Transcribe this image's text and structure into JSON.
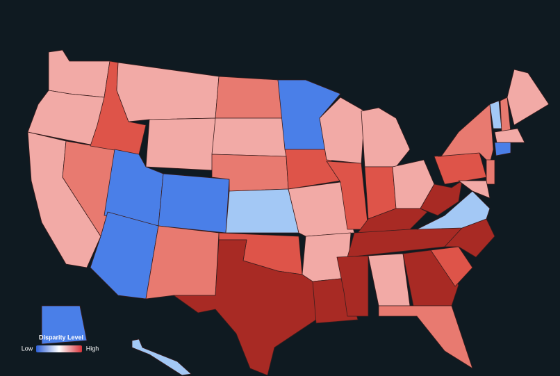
{
  "map": {
    "background": "#0f1a21",
    "regions": [
      {
        "color": "#f2aaa6"
      },
      {
        "color": "#f2aaa6"
      },
      {
        "color": "#f2aaa6"
      },
      {
        "color": "#e87a70"
      },
      {
        "color": "#de5449"
      },
      {
        "color": "#f2aaa6"
      },
      {
        "color": "#f2aaa6"
      },
      {
        "color": "#4a7fe8"
      },
      {
        "color": "#4a7fe8"
      },
      {
        "color": "#4a7fe8"
      },
      {
        "color": "#e87a70"
      },
      {
        "color": "#e87a70"
      },
      {
        "color": "#f2aaa6"
      },
      {
        "color": "#e87a70"
      },
      {
        "color": "#a3c8f5"
      },
      {
        "color": "#de5449"
      },
      {
        "color": "#a82a24"
      },
      {
        "color": "#4a7fe8"
      },
      {
        "color": "#de5449"
      },
      {
        "color": "#f2aaa6"
      },
      {
        "color": "#f2aaa6"
      },
      {
        "color": "#a82a24"
      },
      {
        "color": "#f2aaa6"
      },
      {
        "color": "#de5449"
      },
      {
        "color": "#f2aaa6"
      },
      {
        "color": "#de5449"
      },
      {
        "color": "#f2aaa6"
      },
      {
        "color": "#a82a24"
      },
      {
        "color": "#a82a24"
      },
      {
        "color": "#a82a24"
      },
      {
        "color": "#f2aaa6"
      },
      {
        "color": "#a82a24"
      },
      {
        "color": "#e87a70"
      },
      {
        "color": "#de5449"
      },
      {
        "color": "#a82a24"
      },
      {
        "color": "#a3c8f5"
      },
      {
        "color": "#a82a24"
      },
      {
        "color": "#de5449"
      },
      {
        "color": "#e87a70"
      },
      {
        "color": "#a3c8f5"
      },
      {
        "color": "#e87a70"
      },
      {
        "color": "#f2aaa6"
      },
      {
        "color": "#f2aaa6"
      },
      {
        "color": "#4a7fe8"
      },
      {
        "color": "#e87a70"
      },
      {
        "color": "#f2aaa6"
      },
      {
        "color": "#4a7fe8"
      },
      {
        "color": "#a3c8f5"
      }
    ],
    "legend": {
      "title": "Disparity Level",
      "low_label": "Low",
      "high_label": "High",
      "gradient": [
        "#2d5fd6",
        "#ffffff",
        "#d8343a"
      ]
    }
  }
}
